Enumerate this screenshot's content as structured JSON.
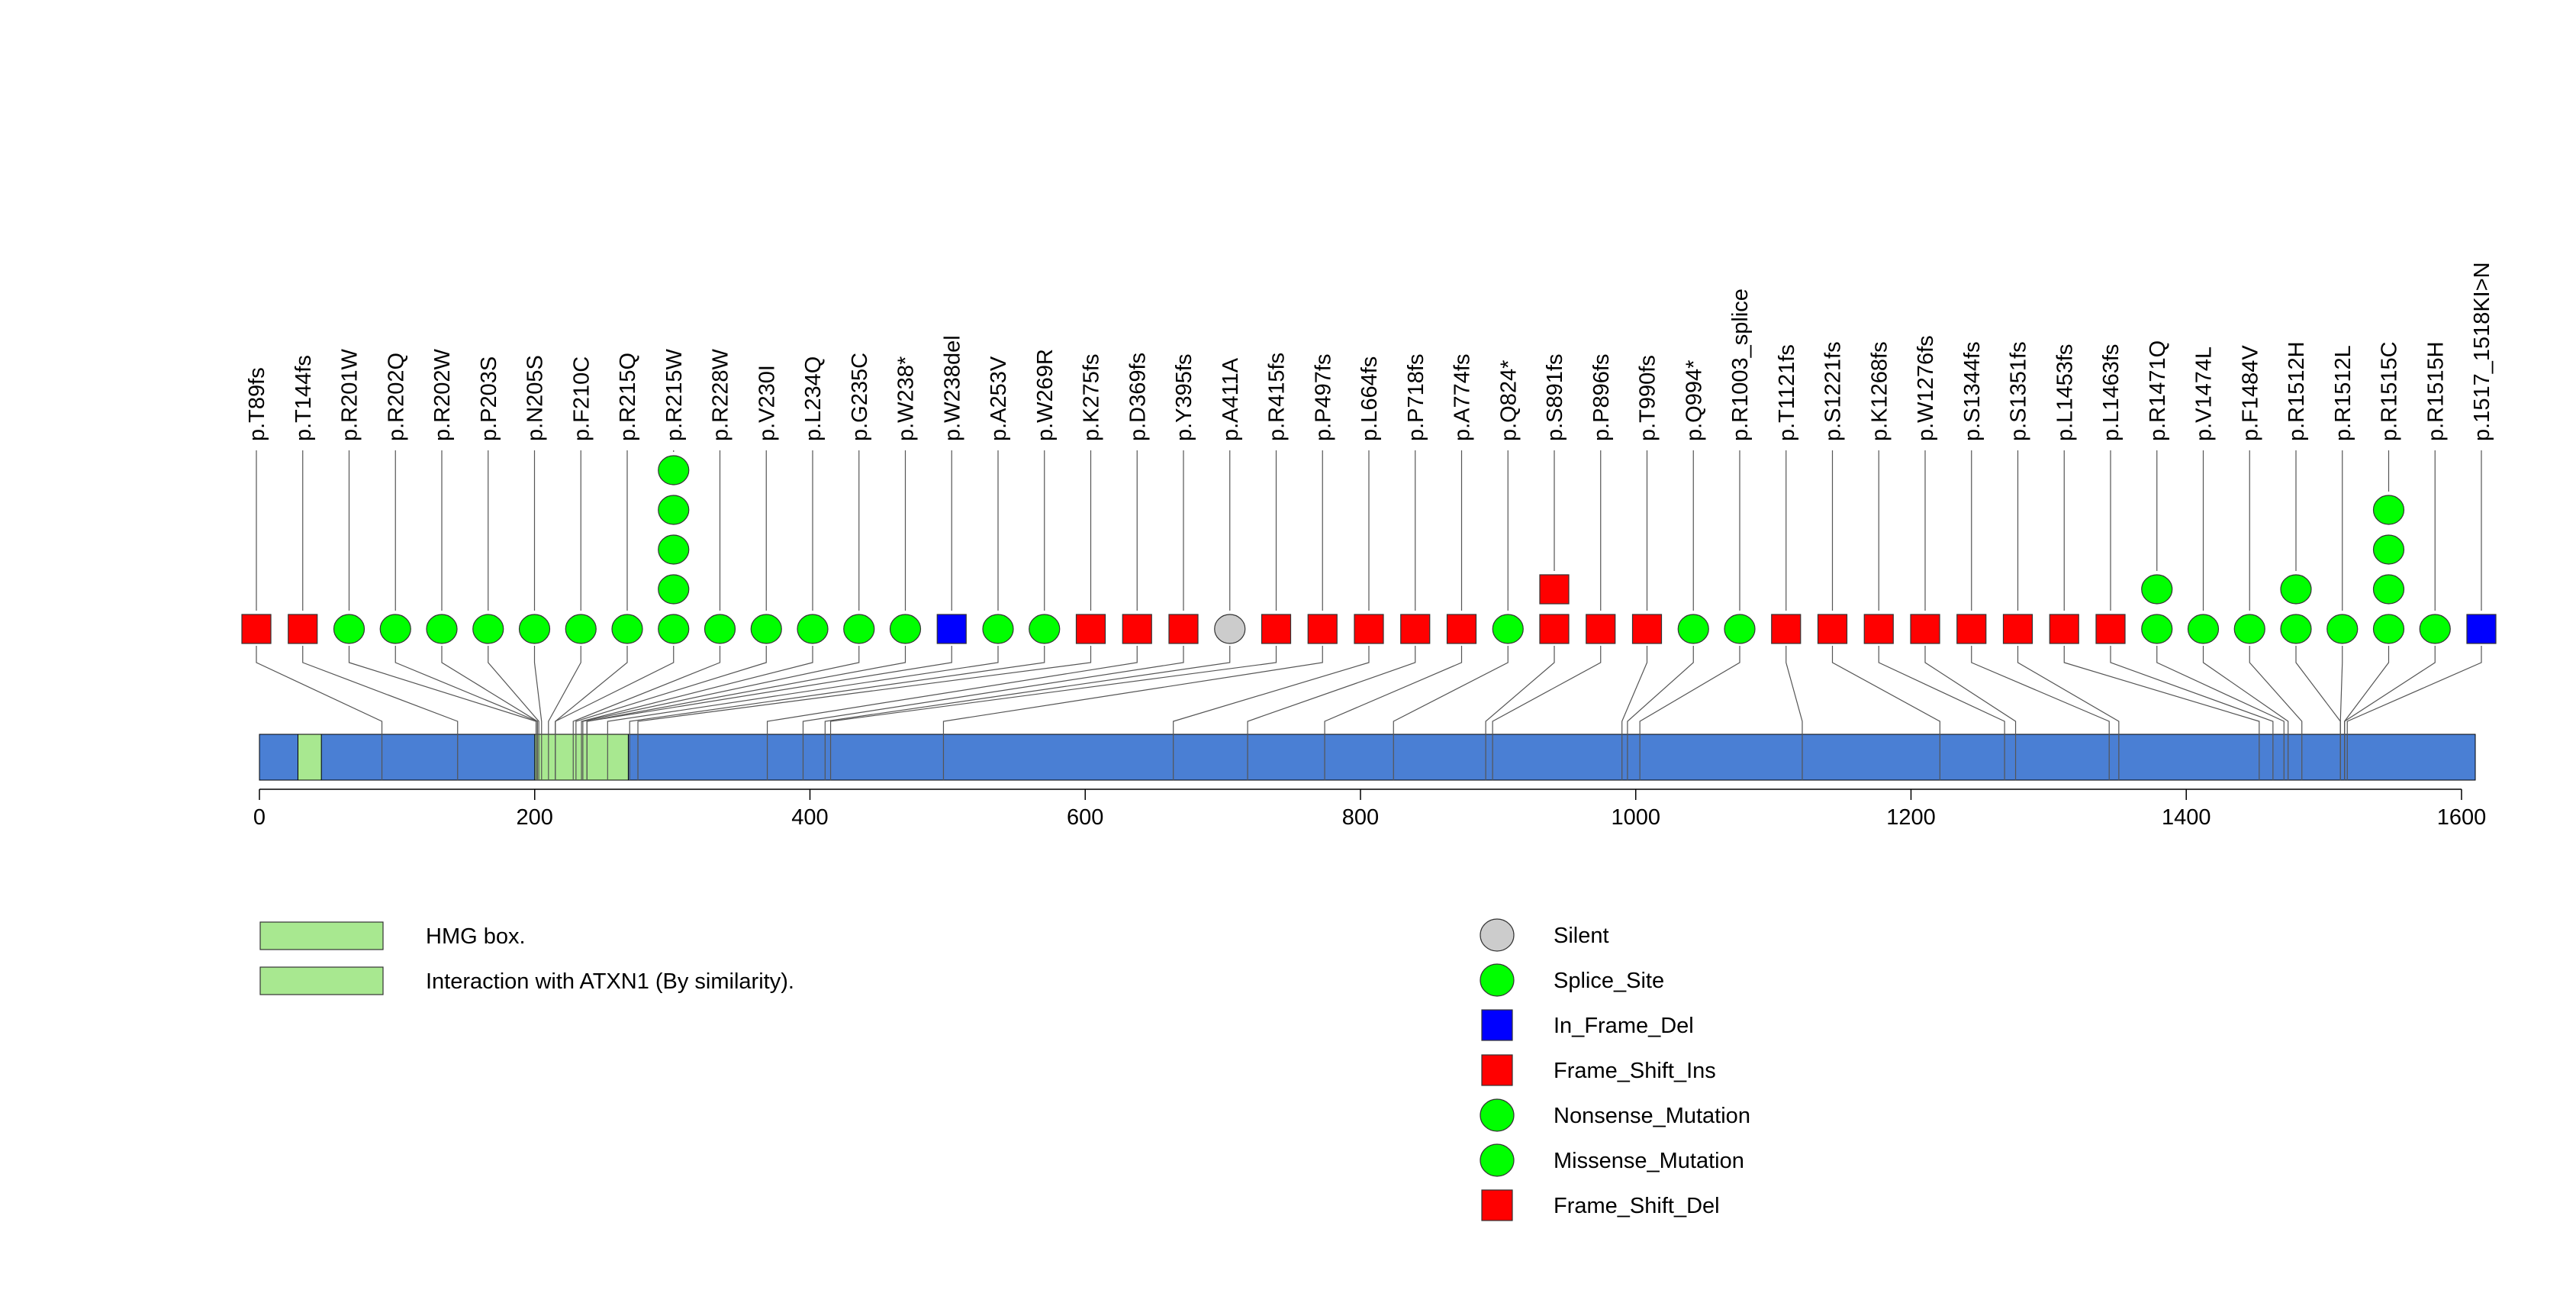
{
  "chart_data": {
    "type": "lollipop",
    "xlim": [
      0,
      1610
    ],
    "xticks": [
      0,
      200,
      400,
      600,
      800,
      1000,
      1200,
      1400,
      1600
    ],
    "protein_length": 1610,
    "domains": [
      {
        "name": "HMG box.",
        "start": 28,
        "end": 45,
        "color": "#a8e890"
      },
      {
        "name": "Interaction with ATXN1 (By similarity).",
        "start": 200,
        "end": 268,
        "color": "#a8e890"
      }
    ],
    "protein_color": "#4a7fd4",
    "mutations": [
      {
        "label": "p.T89fs",
        "position": 89,
        "count": 1,
        "type": "Frame_Shift_Del"
      },
      {
        "label": "p.T144fs",
        "position": 144,
        "count": 1,
        "type": "Frame_Shift_Del"
      },
      {
        "label": "p.R201W",
        "position": 201,
        "count": 1,
        "type": "Missense_Mutation"
      },
      {
        "label": "p.R202Q",
        "position": 202,
        "count": 1,
        "type": "Missense_Mutation"
      },
      {
        "label": "p.R202W",
        "position": 202,
        "count": 1,
        "type": "Missense_Mutation"
      },
      {
        "label": "p.P203S",
        "position": 203,
        "count": 1,
        "type": "Missense_Mutation"
      },
      {
        "label": "p.N205S",
        "position": 205,
        "count": 1,
        "type": "Missense_Mutation"
      },
      {
        "label": "p.F210C",
        "position": 210,
        "count": 1,
        "type": "Missense_Mutation"
      },
      {
        "label": "p.R215Q",
        "position": 215,
        "count": 1,
        "type": "Missense_Mutation"
      },
      {
        "label": "p.R215W",
        "position": 215,
        "count": 5,
        "type": "Missense_Mutation"
      },
      {
        "label": "p.R228W",
        "position": 228,
        "count": 1,
        "type": "Missense_Mutation"
      },
      {
        "label": "p.V230I",
        "position": 230,
        "count": 1,
        "type": "Missense_Mutation"
      },
      {
        "label": "p.L234Q",
        "position": 234,
        "count": 1,
        "type": "Missense_Mutation"
      },
      {
        "label": "p.G235C",
        "position": 235,
        "count": 1,
        "type": "Missense_Mutation"
      },
      {
        "label": "p.W238*",
        "position": 238,
        "count": 1,
        "type": "Nonsense_Mutation"
      },
      {
        "label": "p.W238del",
        "position": 238,
        "count": 1,
        "type": "In_Frame_Del"
      },
      {
        "label": "p.A253V",
        "position": 253,
        "count": 1,
        "type": "Missense_Mutation"
      },
      {
        "label": "p.W269R",
        "position": 269,
        "count": 1,
        "type": "Missense_Mutation"
      },
      {
        "label": "p.K275fs",
        "position": 275,
        "count": 1,
        "type": "Frame_Shift_Del"
      },
      {
        "label": "p.D369fs",
        "position": 369,
        "count": 1,
        "type": "Frame_Shift_Del"
      },
      {
        "label": "p.Y395fs",
        "position": 395,
        "count": 1,
        "type": "Frame_Shift_Del"
      },
      {
        "label": "p.A411A",
        "position": 411,
        "count": 1,
        "type": "Silent"
      },
      {
        "label": "p.R415fs",
        "position": 415,
        "count": 1,
        "type": "Frame_Shift_Del"
      },
      {
        "label": "p.P497fs",
        "position": 497,
        "count": 1,
        "type": "Frame_Shift_Del"
      },
      {
        "label": "p.L664fs",
        "position": 664,
        "count": 1,
        "type": "Frame_Shift_Del"
      },
      {
        "label": "p.P718fs",
        "position": 718,
        "count": 1,
        "type": "Frame_Shift_Del"
      },
      {
        "label": "p.A774fs",
        "position": 774,
        "count": 1,
        "type": "Frame_Shift_Del"
      },
      {
        "label": "p.Q824*",
        "position": 824,
        "count": 1,
        "type": "Nonsense_Mutation"
      },
      {
        "label": "p.S891fs",
        "position": 891,
        "count": 2,
        "type": "Frame_Shift_Del"
      },
      {
        "label": "p.P896fs",
        "position": 896,
        "count": 1,
        "type": "Frame_Shift_Del"
      },
      {
        "label": "p.T990fs",
        "position": 990,
        "count": 1,
        "type": "Frame_Shift_Del"
      },
      {
        "label": "p.Q994*",
        "position": 994,
        "count": 1,
        "type": "Nonsense_Mutation"
      },
      {
        "label": "p.R1003_splice",
        "position": 1003,
        "count": 1,
        "type": "Splice_Site"
      },
      {
        "label": "p.T1121fs",
        "position": 1121,
        "count": 1,
        "type": "Frame_Shift_Del"
      },
      {
        "label": "p.S1221fs",
        "position": 1221,
        "count": 1,
        "type": "Frame_Shift_Del"
      },
      {
        "label": "p.K1268fs",
        "position": 1268,
        "count": 1,
        "type": "Frame_Shift_Del"
      },
      {
        "label": "p.W1276fs",
        "position": 1276,
        "count": 1,
        "type": "Frame_Shift_Del"
      },
      {
        "label": "p.S1344fs",
        "position": 1344,
        "count": 1,
        "type": "Frame_Shift_Del"
      },
      {
        "label": "p.S1351fs",
        "position": 1351,
        "count": 1,
        "type": "Frame_Shift_Del"
      },
      {
        "label": "p.L1453fs",
        "position": 1453,
        "count": 1,
        "type": "Frame_Shift_Del"
      },
      {
        "label": "p.L1463fs",
        "position": 1463,
        "count": 1,
        "type": "Frame_Shift_Del"
      },
      {
        "label": "p.R1471Q",
        "position": 1471,
        "count": 2,
        "type": "Missense_Mutation"
      },
      {
        "label": "p.V1474L",
        "position": 1474,
        "count": 1,
        "type": "Missense_Mutation"
      },
      {
        "label": "p.F1484V",
        "position": 1484,
        "count": 1,
        "type": "Missense_Mutation"
      },
      {
        "label": "p.R1512H",
        "position": 1512,
        "count": 2,
        "type": "Missense_Mutation"
      },
      {
        "label": "p.R1512L",
        "position": 1512,
        "count": 1,
        "type": "Missense_Mutation"
      },
      {
        "label": "p.R1515C",
        "position": 1515,
        "count": 4,
        "type": "Missense_Mutation"
      },
      {
        "label": "p.R1515H",
        "position": 1515,
        "count": 1,
        "type": "Missense_Mutation"
      },
      {
        "label": "p.1517_1518KI>N",
        "position": 1517,
        "count": 1,
        "type": "In_Frame_Del"
      }
    ],
    "domain_legend": [
      {
        "label": "HMG box.",
        "color": "#a8e890"
      },
      {
        "label": "Interaction with ATXN1 (By similarity).",
        "color": "#a8e890"
      }
    ],
    "type_legend": [
      {
        "label": "Silent",
        "shape": "circle",
        "color": "#cccccc"
      },
      {
        "label": "Splice_Site",
        "shape": "circle",
        "color": "#00ff00"
      },
      {
        "label": "In_Frame_Del",
        "shape": "square",
        "color": "#0000ff"
      },
      {
        "label": "Frame_Shift_Ins",
        "shape": "square",
        "color": "#ff0000"
      },
      {
        "label": "Nonsense_Mutation",
        "shape": "circle",
        "color": "#00ff00"
      },
      {
        "label": "Missense_Mutation",
        "shape": "circle",
        "color": "#00ff00"
      },
      {
        "label": "Frame_Shift_Del",
        "shape": "square",
        "color": "#ff0000"
      }
    ],
    "type_styles": {
      "Silent": {
        "shape": "circle",
        "color": "#cccccc"
      },
      "Splice_Site": {
        "shape": "circle",
        "color": "#00ff00"
      },
      "In_Frame_Del": {
        "shape": "square",
        "color": "#0000ff"
      },
      "Frame_Shift_Ins": {
        "shape": "square",
        "color": "#ff0000"
      },
      "Nonsense_Mutation": {
        "shape": "circle",
        "color": "#00ff00"
      },
      "Missense_Mutation": {
        "shape": "circle",
        "color": "#00ff00"
      },
      "Frame_Shift_Del": {
        "shape": "square",
        "color": "#ff0000"
      }
    }
  }
}
